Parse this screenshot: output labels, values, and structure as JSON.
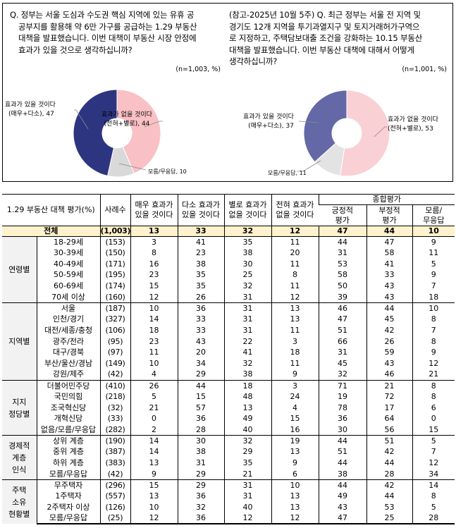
{
  "left_panel": {
    "question_lines": [
      "Q. 정부는 서울 도심과 수도권 핵심 지역에 있는 유휴 공",
      "공부지를 활용해 약 6만 가구를 공급하는 1.29 부동산",
      "대책을 발표했습니다. 이번 대책이 부동산 시장 안정에",
      "효과가 있을 것으로 생각하십니까?"
    ],
    "sample": "(n=1,003,  %)",
    "slices": [
      {
        "label_1": "효과가 없을 것이다",
        "label_2": "(전혀+별로), 44",
        "value": 44,
        "color": "#F9C1C5"
      },
      {
        "label_1": "모름/무응답, 10",
        "label_2": "",
        "value": 10,
        "color": "#D9D9D9"
      },
      {
        "label_1": "효과가 있을 것이다",
        "label_2": "(매우+다소), 47",
        "value": 47,
        "color": "#2E3580"
      }
    ]
  },
  "right_panel": {
    "question_lines": [
      "(참고-2025년 10월 5주) Q. 최근 정부는 서울 전 지역 및",
      "경기도 12개 지역을 투기과열지구 및 토지거래허가구역으",
      "로 지정하고, 주택담보대출 조건을 강화하는 10.15 부동산",
      "대책을 발표했습니다. 이번 부동산 대책에 대해서 어떻게",
      "생각하십니까?"
    ],
    "sample": "(n=1,001,  %)",
    "slices": [
      {
        "label_1": "효과가 없을 것이다",
        "label_2": "(전혀+별로), 53",
        "value": 53,
        "color": "#F9D0D4"
      },
      {
        "label_1": "모름/무응답, 11",
        "label_2": "",
        "value": 11,
        "color": "#E3E3E3"
      },
      {
        "label_1": "효과가 있을 것이다",
        "label_2": "(매우+다소), 37",
        "value": 37,
        "color": "#6568A6"
      }
    ]
  },
  "table": {
    "title": "1.29 부동산 대책 평가(%)",
    "n_header": "사례수",
    "col_headers": [
      [
        "매우 효과가",
        "있을 것이다"
      ],
      [
        "다소 효과가",
        "있을 것이다"
      ],
      [
        "별로 효과가",
        "없을 것이다"
      ],
      [
        "전혀 효과가",
        "없을 것이다"
      ]
    ],
    "summary_header": "종합평가",
    "summary_cols": [
      [
        "긍정적",
        "평가"
      ],
      [
        "부정적",
        "평가"
      ],
      [
        "모름/",
        "무응답"
      ]
    ],
    "total": {
      "label": "전체",
      "n": "(1,003)",
      "values": [
        "13",
        "33",
        "32",
        "12",
        "47",
        "44",
        "10"
      ]
    },
    "groups": [
      {
        "name": [
          "연령별"
        ],
        "rows": [
          {
            "label": "18-29세",
            "n": "(153)",
            "values": [
              "3",
              "41",
              "35",
              "11",
              "44",
              "47",
              "9"
            ]
          },
          {
            "label": "30-39세",
            "n": "(150)",
            "values": [
              "8",
              "23",
              "38",
              "20",
              "31",
              "58",
              "11"
            ]
          },
          {
            "label": "40-49세",
            "n": "(171)",
            "values": [
              "16",
              "38",
              "30",
              "11",
              "53",
              "41",
              "5"
            ]
          },
          {
            "label": "50-59세",
            "n": "(195)",
            "values": [
              "23",
              "35",
              "25",
              "8",
              "58",
              "33",
              "9"
            ]
          },
          {
            "label": "60-69세",
            "n": "(174)",
            "values": [
              "15",
              "35",
              "32",
              "11",
              "50",
              "43",
              "7"
            ]
          },
          {
            "label": "70세 이상",
            "n": "(160)",
            "values": [
              "12",
              "26",
              "31",
              "12",
              "39",
              "43",
              "18"
            ]
          }
        ]
      },
      {
        "name": [
          "지역별"
        ],
        "rows": [
          {
            "label": "서울",
            "n": "(187)",
            "values": [
              "10",
              "36",
              "31",
              "13",
              "46",
              "44",
              "10"
            ]
          },
          {
            "label": "인천/경기",
            "n": "(327)",
            "values": [
              "14",
              "33",
              "31",
              "13",
              "47",
              "45",
              "8"
            ]
          },
          {
            "label": "대전/세종/충청",
            "n": "(106)",
            "values": [
              "18",
              "33",
              "31",
              "11",
              "51",
              "42",
              "7"
            ]
          },
          {
            "label": "광주/전라",
            "n": "(95)",
            "values": [
              "23",
              "43",
              "22",
              "3",
              "66",
              "26",
              "8"
            ]
          },
          {
            "label": "대구/경북",
            "n": "(97)",
            "values": [
              "11",
              "20",
              "41",
              "18",
              "31",
              "59",
              "9"
            ]
          },
          {
            "label": "부산/울산/경남",
            "n": "(149)",
            "values": [
              "10",
              "34",
              "32",
              "11",
              "45",
              "43",
              "12"
            ]
          },
          {
            "label": "강원/제주",
            "n": "(42)",
            "values": [
              "4",
              "29",
              "38",
              "9",
              "32",
              "46",
              "21"
            ]
          }
        ]
      },
      {
        "name": [
          "지지",
          "정당별"
        ],
        "rows": [
          {
            "label": "더불어민주당",
            "n": "(410)",
            "values": [
              "26",
              "44",
              "18",
              "3",
              "71",
              "21",
              "8"
            ]
          },
          {
            "label": "국민의힘",
            "n": "(218)",
            "values": [
              "5",
              "15",
              "48",
              "24",
              "19",
              "72",
              "8"
            ]
          },
          {
            "label": "조국혁신당",
            "n": "(32)",
            "values": [
              "21",
              "57",
              "13",
              "4",
              "78",
              "17",
              "6"
            ]
          },
          {
            "label": "개혁신당",
            "n": "(33)",
            "values": [
              "0",
              "36",
              "49",
              "15",
              "36",
              "64",
              "0"
            ]
          },
          {
            "label": "없음/모름/무응답",
            "n": "(282)",
            "values": [
              "2",
              "28",
              "40",
              "16",
              "30",
              "56",
              "15"
            ]
          }
        ]
      },
      {
        "name": [
          "경제적",
          "계층",
          "인식"
        ],
        "rows": [
          {
            "label": "상위 계층",
            "n": "(190)",
            "values": [
              "14",
              "30",
              "32",
              "19",
              "44",
              "51",
              "5"
            ]
          },
          {
            "label": "중위 계층",
            "n": "(387)",
            "values": [
              "14",
              "38",
              "29",
              "13",
              "51",
              "42",
              "7"
            ]
          },
          {
            "label": "하위 계층",
            "n": "(383)",
            "values": [
              "13",
              "31",
              "35",
              "9",
              "44",
              "44",
              "12"
            ]
          },
          {
            "label": "모름/무응답",
            "n": "(42)",
            "values": [
              "9",
              "29",
              "21",
              "6",
              "38",
              "28",
              "34"
            ]
          }
        ]
      },
      {
        "name": [
          "주택",
          "소유",
          "현황별"
        ],
        "rows": [
          {
            "label": "무주택자",
            "n": "(296)",
            "values": [
              "15",
              "29",
              "31",
              "10",
              "44",
              "42",
              "14"
            ]
          },
          {
            "label": "1주택자",
            "n": "(557)",
            "values": [
              "13",
              "36",
              "31",
              "13",
              "49",
              "44",
              "8"
            ]
          },
          {
            "label": "2주택자 이상",
            "n": "(126)",
            "values": [
              "10",
              "32",
              "40",
              "13",
              "43",
              "53",
              "5"
            ]
          },
          {
            "label": "모름/무응답",
            "n": "(25)",
            "values": [
              "12",
              "36",
              "12",
              "12",
              "47",
              "25",
              "28"
            ]
          }
        ]
      }
    ]
  }
}
